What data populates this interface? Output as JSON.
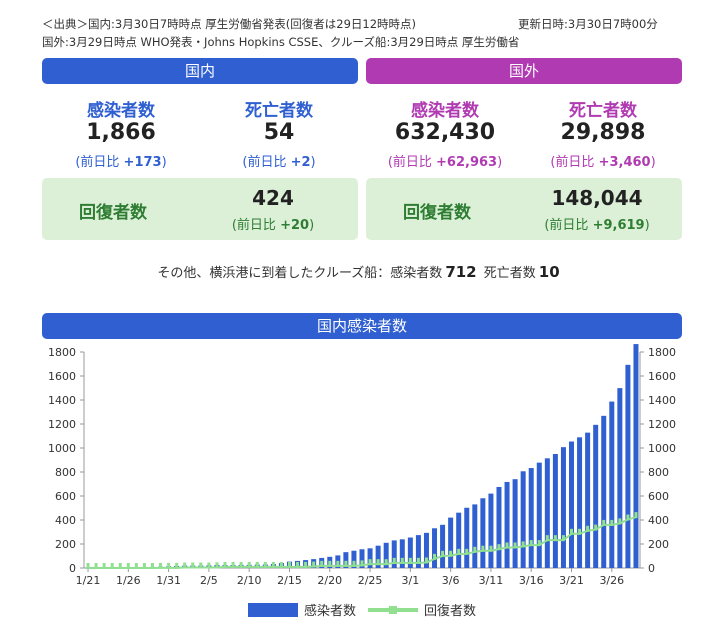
{
  "source": {
    "line1": "＜出典＞国内:3月30日7時時点 厚生労働省発表(回復者は29日12時時点)",
    "updated": "更新日時:3月30日7時00分",
    "line2": "国外:3月29日時点 WHO発表・Johns Hopkins CSSE、クルーズ船:3月29日時点 厚生労働省"
  },
  "colors": {
    "domestic": "#2f5fd0",
    "overseas": "#b03ab2",
    "recovery_green": "#2e7d32",
    "recovery_bg": "#dcf0d8",
    "line": "#90e090"
  },
  "domestic": {
    "header": "国内",
    "infected": {
      "label": "感染者数",
      "value": "1,866",
      "delta_prefix": "(前日比 ",
      "delta": "+173",
      "delta_suffix": ")"
    },
    "deaths": {
      "label": "死亡者数",
      "value": "54",
      "delta_prefix": "(前日比 ",
      "delta": "+2",
      "delta_suffix": ")"
    },
    "recovered": {
      "label": "回復者数",
      "value": "424",
      "delta_prefix": "(前日比 ",
      "delta": "+20",
      "delta_suffix": ")"
    }
  },
  "overseas": {
    "header": "国外",
    "infected": {
      "label": "感染者数",
      "value": "632,430",
      "delta_prefix": "(前日比 ",
      "delta": "+62,963",
      "delta_suffix": ")"
    },
    "deaths": {
      "label": "死亡者数",
      "value": "29,898",
      "delta_prefix": "(前日比 ",
      "delta": "+3,460",
      "delta_suffix": ")"
    },
    "recovered": {
      "label": "回復者数",
      "value": "148,044",
      "delta_prefix": "(前日比 ",
      "delta": "+9,619",
      "delta_suffix": ")"
    }
  },
  "cruise": {
    "prefix": "その他、横浜港に到着したクルーズ船：感染者数",
    "infected": "712",
    "death_label": "死亡者数",
    "deaths": "10"
  },
  "chart_data": {
    "type": "bar",
    "title": "国内感染者数",
    "x": [
      "1/21",
      "1/22",
      "1/23",
      "1/24",
      "1/25",
      "1/26",
      "1/27",
      "1/28",
      "1/29",
      "1/30",
      "1/31",
      "2/1",
      "2/2",
      "2/3",
      "2/4",
      "2/5",
      "2/6",
      "2/7",
      "2/8",
      "2/9",
      "2/10",
      "2/11",
      "2/12",
      "2/13",
      "2/14",
      "2/15",
      "2/16",
      "2/17",
      "2/18",
      "2/19",
      "2/20",
      "2/21",
      "2/22",
      "2/23",
      "2/24",
      "2/25",
      "2/26",
      "2/27",
      "2/28",
      "2/29",
      "3/1",
      "3/2",
      "3/3",
      "3/4",
      "3/5",
      "3/6",
      "3/7",
      "3/8",
      "3/9",
      "3/10",
      "3/11",
      "3/12",
      "3/13",
      "3/14",
      "3/15",
      "3/16",
      "3/17",
      "3/18",
      "3/19",
      "3/20",
      "3/21",
      "3/22",
      "3/23",
      "3/24",
      "3/25",
      "3/26",
      "3/27",
      "3/28",
      "3/29"
    ],
    "x_tick_labels": [
      "1/21",
      "1/26",
      "1/31",
      "2/5",
      "2/10",
      "2/15",
      "2/20",
      "2/25",
      "3/1",
      "3/6",
      "3/11",
      "3/16",
      "3/21",
      "3/26"
    ],
    "series": [
      {
        "name": "感染者数",
        "type": "bar",
        "color": "#2f5fd0",
        "values": [
          1,
          1,
          1,
          2,
          3,
          4,
          4,
          7,
          9,
          11,
          14,
          17,
          20,
          20,
          20,
          22,
          25,
          25,
          25,
          26,
          26,
          28,
          29,
          33,
          41,
          53,
          59,
          66,
          74,
          84,
          93,
          105,
          132,
          144,
          156,
          164,
          186,
          210,
          230,
          239,
          254,
          274,
          293,
          331,
          360,
          420,
          461,
          502,
          530,
          581,
          620,
          675,
          717,
          740,
          806,
          833,
          878,
          914,
          950,
          1007,
          1054,
          1089,
          1128,
          1193,
          1268,
          1387,
          1499,
          1693,
          1866
        ]
      },
      {
        "name": "回復者数",
        "type": "line",
        "color": "#90e090",
        "values": [
          0,
          0,
          0,
          0,
          0,
          0,
          0,
          0,
          0,
          1,
          1,
          1,
          4,
          4,
          4,
          4,
          5,
          9,
          9,
          9,
          9,
          9,
          9,
          9,
          9,
          9,
          9,
          9,
          12,
          18,
          18,
          18,
          18,
          18,
          22,
          32,
          32,
          32,
          43,
          43,
          43,
          43,
          46,
          76,
          101,
          102,
          118,
          118,
          135,
          144,
          144,
          157,
          171,
          171,
          180,
          191,
          191,
          232,
          232,
          232,
          285,
          285,
          310,
          320,
          359,
          359,
          372,
          404,
          424
        ]
      }
    ],
    "ylim": [
      0,
      1800
    ],
    "yticks": [
      0,
      200,
      400,
      600,
      800,
      1000,
      1200,
      1400,
      1600,
      1800
    ],
    "grid": false,
    "legend": "bottom-center"
  }
}
